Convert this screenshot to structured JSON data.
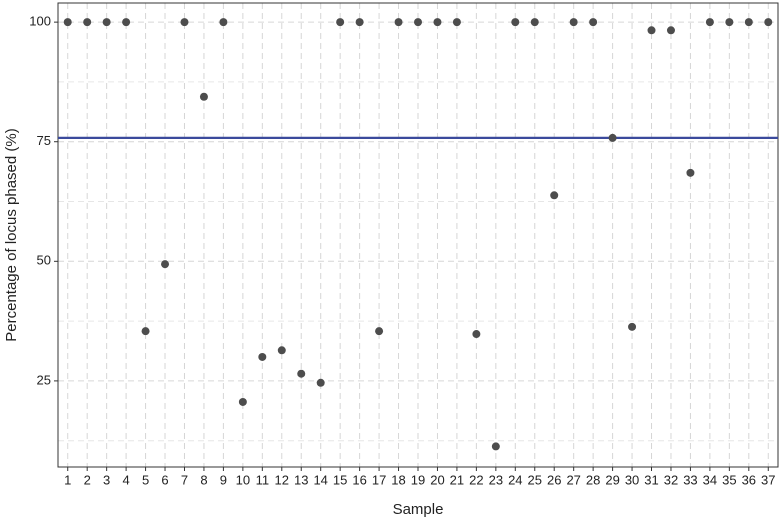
{
  "chart_data": {
    "type": "scatter",
    "x_label": "Sample",
    "y_label": "Percentage of locus phased (%)",
    "categories": [
      "1",
      "2",
      "3",
      "4",
      "5",
      "6",
      "7",
      "8",
      "9",
      "10",
      "11",
      "12",
      "13",
      "14",
      "15",
      "16",
      "17",
      "18",
      "19",
      "20",
      "21",
      "22",
      "23",
      "24",
      "25",
      "26",
      "27",
      "28",
      "29",
      "30",
      "31",
      "32",
      "33",
      "34",
      "35",
      "36",
      "37"
    ],
    "values": [
      100,
      100,
      100,
      100,
      35.4,
      49.4,
      100,
      84.4,
      100,
      20.6,
      30,
      31.4,
      26.5,
      24.6,
      100,
      100,
      35.4,
      100,
      100,
      100,
      100,
      34.8,
      11.3,
      100,
      100,
      63.8,
      100,
      100,
      75.8,
      36.3,
      98.3,
      98.3,
      68.5,
      100,
      100,
      100,
      100
    ],
    "color": "#4d4d4d",
    "ylim": [
      7,
      104
    ],
    "yticks": [
      25,
      50,
      75,
      100
    ],
    "yminor": [
      12.5,
      37.5,
      62.5,
      87.5
    ],
    "grid": true,
    "hline": {
      "value": 75.8,
      "color": "#3b4a9c"
    }
  }
}
